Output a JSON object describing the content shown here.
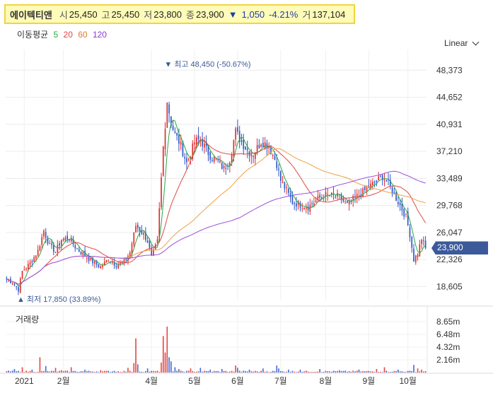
{
  "header": {
    "name": "에이텍티앤",
    "open_label": "시",
    "open": "25,450",
    "high_label": "고",
    "high": "25,450",
    "low_label": "저",
    "low": "23,800",
    "close_label": "종",
    "close": "23,900",
    "change": "1,050",
    "change_pct": "-4.21%",
    "volume_label": "거",
    "volume": "137,104"
  },
  "ma_legend": {
    "label": "이동평균",
    "p5": "5",
    "p20": "20",
    "p60": "60",
    "p120": "120"
  },
  "colors": {
    "up": "#e02a2a",
    "down": "#2c55c8",
    "ma5": "#27a745",
    "ma20": "#e04848",
    "ma60": "#f0a040",
    "ma120": "#9b4fe0",
    "price_tag": "#3c5a9a"
  },
  "scale_button": {
    "label": "Linear"
  },
  "volume_title": "거래량",
  "current_price": "23,900",
  "chart_data": {
    "type": "candlestick",
    "price_axis": {
      "ticks": [
        "48,373",
        "44,652",
        "40,931",
        "37,210",
        "33,489",
        "29,768",
        "26,047",
        "22,326",
        "18,605"
      ],
      "ylim": [
        16700,
        50250
      ]
    },
    "volume_axis": {
      "ticks": [
        "8.65m",
        "6.48m",
        "4.32m",
        "2.16m"
      ],
      "ylim": [
        0,
        10800000
      ]
    },
    "x_tick_labels": [
      {
        "label": "2021",
        "index": 9
      },
      {
        "label": "2월",
        "index": 29
      },
      {
        "label": "4월",
        "index": 74
      },
      {
        "label": "5월",
        "index": 96
      },
      {
        "label": "6월",
        "index": 118
      },
      {
        "label": "7월",
        "index": 140
      },
      {
        "label": "8월",
        "index": 163
      },
      {
        "label": "9월",
        "index": 185
      },
      {
        "label": "10월",
        "index": 205
      }
    ],
    "annotations": {
      "high": {
        "label": "최고 48,450 (-50.67%)",
        "value": 48450,
        "index": 82
      },
      "low": {
        "label": "최저 17,850 (33.89%)",
        "value": 17850,
        "index": 6
      }
    },
    "close_anchors": [
      [
        0,
        19600
      ],
      [
        3,
        19200
      ],
      [
        6,
        18200
      ],
      [
        8,
        20700
      ],
      [
        12,
        21800
      ],
      [
        16,
        23500
      ],
      [
        19,
        26300
      ],
      [
        22,
        24200
      ],
      [
        25,
        23400
      ],
      [
        28,
        25100
      ],
      [
        32,
        25300
      ],
      [
        36,
        23700
      ],
      [
        40,
        22900
      ],
      [
        44,
        22000
      ],
      [
        48,
        21300
      ],
      [
        52,
        22400
      ],
      [
        56,
        21600
      ],
      [
        60,
        22000
      ],
      [
        63,
        23300
      ],
      [
        66,
        27000
      ],
      [
        70,
        25800
      ],
      [
        72,
        24900
      ],
      [
        74,
        22600
      ],
      [
        77,
        24800
      ],
      [
        80,
        37800
      ],
      [
        82,
        44200
      ],
      [
        84,
        41100
      ],
      [
        86,
        39500
      ],
      [
        88,
        38600
      ],
      [
        90,
        37200
      ],
      [
        92,
        35600
      ],
      [
        94,
        36800
      ],
      [
        96,
        38500
      ],
      [
        99,
        38900
      ],
      [
        102,
        37400
      ],
      [
        105,
        36300
      ],
      [
        108,
        35800
      ],
      [
        111,
        34800
      ],
      [
        114,
        36200
      ],
      [
        117,
        39900
      ],
      [
        120,
        38500
      ],
      [
        123,
        37400
      ],
      [
        126,
        36800
      ],
      [
        130,
        38600
      ],
      [
        134,
        38000
      ],
      [
        138,
        35500
      ],
      [
        140,
        33200
      ],
      [
        143,
        31800
      ],
      [
        146,
        30200
      ],
      [
        150,
        29900
      ],
      [
        154,
        29600
      ],
      [
        158,
        30400
      ],
      [
        162,
        31200
      ],
      [
        166,
        31100
      ],
      [
        170,
        30900
      ],
      [
        174,
        29800
      ],
      [
        178,
        30800
      ],
      [
        182,
        31600
      ],
      [
        186,
        32500
      ],
      [
        189,
        33100
      ],
      [
        192,
        33800
      ],
      [
        195,
        32800
      ],
      [
        198,
        31200
      ],
      [
        201,
        29800
      ],
      [
        204,
        28200
      ],
      [
        206,
        25800
      ],
      [
        208,
        22300
      ],
      [
        210,
        23200
      ],
      [
        212,
        25200
      ],
      [
        214,
        23900
      ]
    ],
    "volume_spikes": [
      [
        4,
        0.6
      ],
      [
        8,
        0.9
      ],
      [
        13,
        0.5
      ],
      [
        17,
        2.6
      ],
      [
        20,
        1.1
      ],
      [
        25,
        0.8
      ],
      [
        28,
        0.4
      ],
      [
        33,
        0.9
      ],
      [
        40,
        0.5
      ],
      [
        48,
        0.4
      ],
      [
        55,
        0.3
      ],
      [
        62,
        0.8
      ],
      [
        65,
        1.6
      ],
      [
        66,
        5.8
      ],
      [
        67,
        1.4
      ],
      [
        72,
        0.7
      ],
      [
        79,
        1.7
      ],
      [
        80,
        6.2
      ],
      [
        81,
        3.4
      ],
      [
        82,
        7.8
      ],
      [
        83,
        2.6
      ],
      [
        84,
        1.9
      ],
      [
        86,
        0.9
      ],
      [
        88,
        0.6
      ],
      [
        94,
        0.7
      ],
      [
        99,
        0.8
      ],
      [
        104,
        0.5
      ],
      [
        110,
        0.6
      ],
      [
        117,
        1.2
      ],
      [
        118,
        0.8
      ],
      [
        124,
        0.5
      ],
      [
        131,
        0.7
      ],
      [
        138,
        1.2
      ],
      [
        139,
        0.7
      ],
      [
        144,
        0.5
      ],
      [
        150,
        0.5
      ],
      [
        160,
        0.6
      ],
      [
        170,
        0.4
      ],
      [
        180,
        0.5
      ],
      [
        189,
        0.6
      ],
      [
        193,
        0.9
      ],
      [
        200,
        0.5
      ],
      [
        208,
        1.3
      ],
      [
        210,
        0.7
      ],
      [
        212,
        0.5
      ]
    ]
  }
}
